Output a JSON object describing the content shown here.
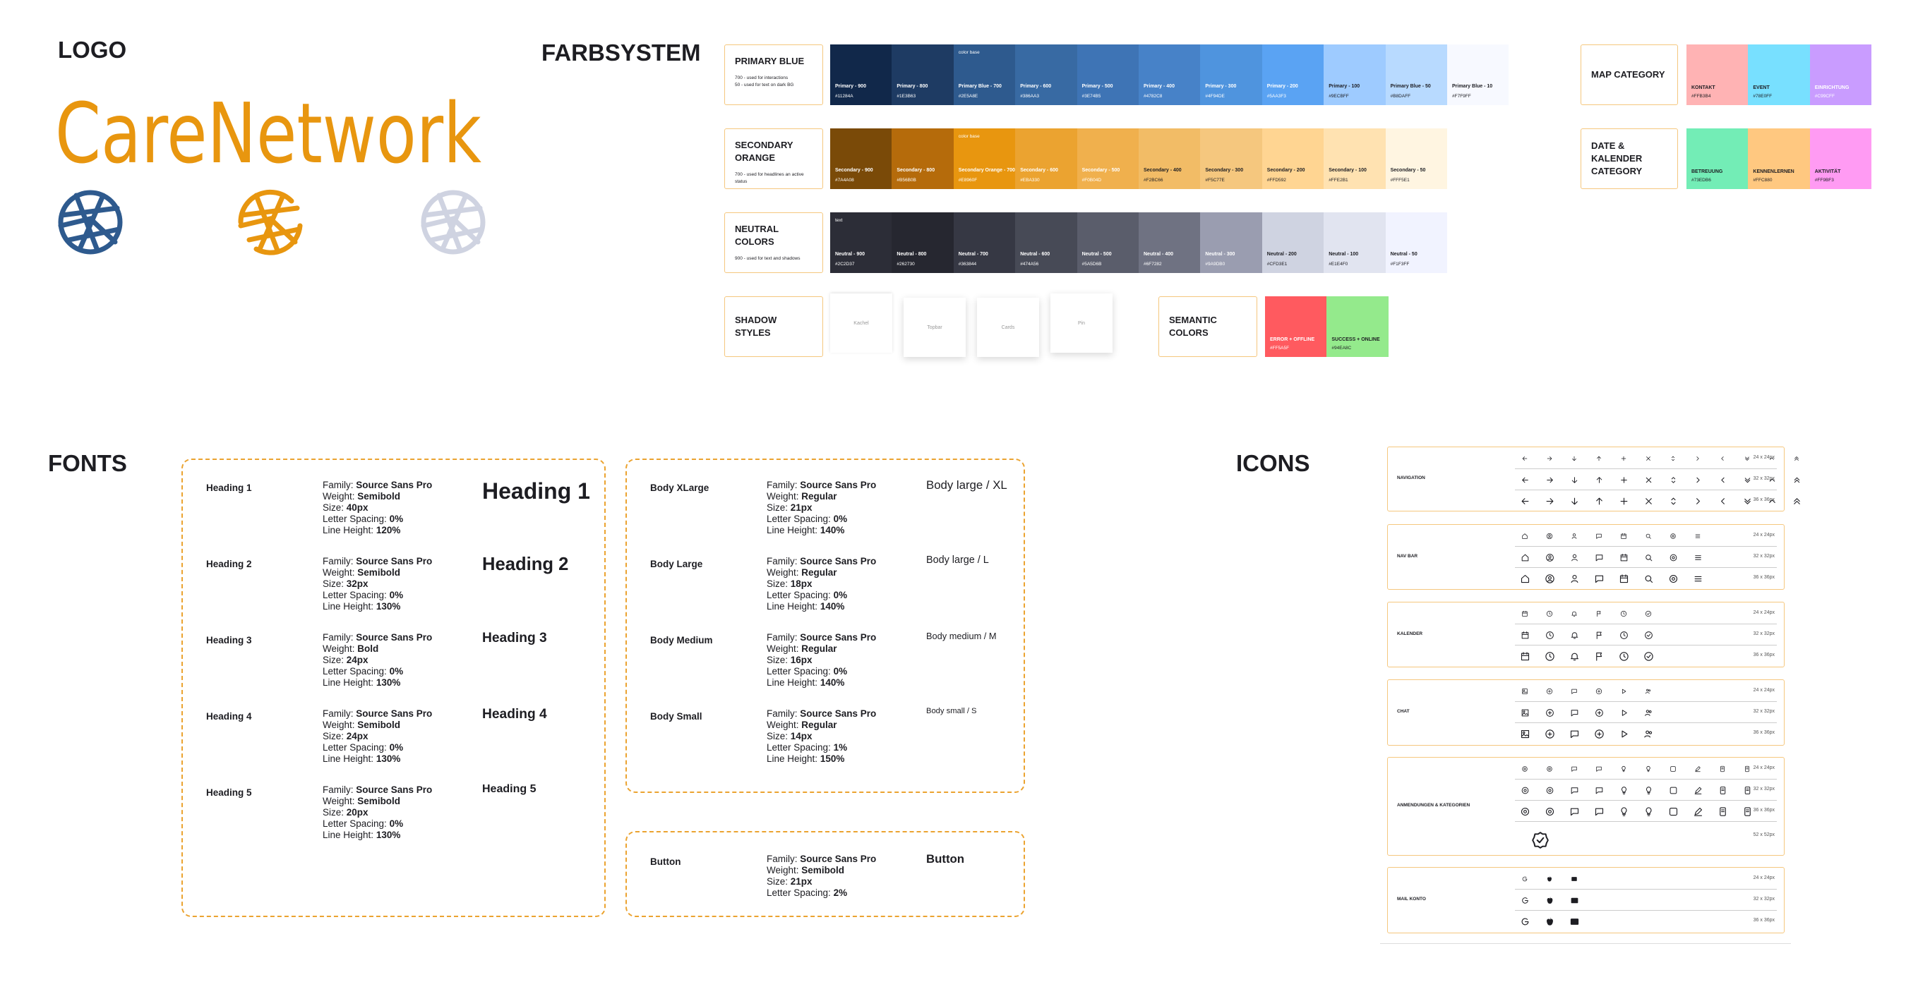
{
  "logo": {
    "title": "LOGO",
    "wordmark": "CareNetwork"
  },
  "colors": {
    "title": "FARBSYSTEM",
    "palettes": [
      {
        "label": "PRIMARY BLUE",
        "notes": [
          "700 - used for interactions",
          "50 - used for text on dark BG"
        ],
        "swatches": [
          {
            "name": "Primary - 900",
            "hex": "#11284A"
          },
          {
            "name": "Primary - 800",
            "hex": "#1E3B63"
          },
          {
            "name": "Primary Blue - 700",
            "hex": "#2E5A8E",
            "tag": "color base"
          },
          {
            "name": "Primary - 600",
            "hex": "#386AA3"
          },
          {
            "name": "Primary - 500",
            "hex": "#3E74B5"
          },
          {
            "name": "Primary - 400",
            "hex": "#4782C8"
          },
          {
            "name": "Primary - 300",
            "hex": "#4F94DE"
          },
          {
            "name": "Primary - 200",
            "hex": "#5AA3F3"
          },
          {
            "name": "Primary - 100",
            "hex": "#9ECBFF"
          },
          {
            "name": "Primary Blue - 50",
            "hex": "#B8DAFF"
          },
          {
            "name": "Primary Blue - 10",
            "hex": "#F7F9FF"
          }
        ]
      },
      {
        "label": "SECONDARY ORANGE",
        "notes": [
          "700 - used for headlines an active status"
        ],
        "swatches": [
          {
            "name": "Secondary - 900",
            "hex": "#7A4A08"
          },
          {
            "name": "Secondary - 800",
            "hex": "#B56B0B"
          },
          {
            "name": "Secondary Orange - 700",
            "hex": "#E8960F",
            "tag": "color base"
          },
          {
            "name": "Secondary - 600",
            "hex": "#EBA330"
          },
          {
            "name": "Secondary - 500",
            "hex": "#F0B04D"
          },
          {
            "name": "Secondary - 400",
            "hex": "#F2BC66"
          },
          {
            "name": "Secondary - 300",
            "hex": "#F5C77E"
          },
          {
            "name": "Secondary - 200",
            "hex": "#FFD592"
          },
          {
            "name": "Secondary - 100",
            "hex": "#FFE2B1"
          },
          {
            "name": "Secondary - 50",
            "hex": "#FFF5E1"
          }
        ]
      },
      {
        "label": "NEUTRAL COLORS",
        "notes": [
          "900 - used for text and shadows"
        ],
        "swatches": [
          {
            "name": "Neutral - 900",
            "hex": "#2C2D37",
            "tag": "text"
          },
          {
            "name": "Neutral - 800",
            "hex": "#262730"
          },
          {
            "name": "Neutral - 700",
            "hex": "#363844"
          },
          {
            "name": "Neutral - 600",
            "hex": "#474A56"
          },
          {
            "name": "Neutral - 500",
            "hex": "#5A5D6B"
          },
          {
            "name": "Neutral - 400",
            "hex": "#6F7282"
          },
          {
            "name": "Neutral - 300",
            "hex": "#9A9DB0"
          },
          {
            "name": "Neutral - 200",
            "hex": "#CFD3E1"
          },
          {
            "name": "Neutral - 100",
            "hex": "#E1E4F0"
          },
          {
            "name": "Neutral - 50",
            "hex": "#F1F3FF"
          }
        ]
      }
    ],
    "shadows": {
      "label": "SHADOW STYLES",
      "items": [
        "Kachel",
        "Topbar",
        "Cards",
        "Pin"
      ]
    },
    "semantic": {
      "label": "SEMANTIC COLORS",
      "swatches": [
        {
          "name": "ERROR + OFFLINE",
          "hex": "#FF5A5F"
        },
        {
          "name": "SUCCESS + ONLINE",
          "hex": "#94EA8C"
        }
      ]
    },
    "categories": [
      {
        "label": "MAP CATEGORY",
        "swatches": [
          {
            "name": "KONTAKT",
            "hex": "#FFB3B4"
          },
          {
            "name": "EVENT",
            "hex": "#78E0FF"
          },
          {
            "name": "EINRICHTUNG",
            "hex": "#C99CFF"
          }
        ]
      },
      {
        "label": "DATE & KALENDER CATEGORY",
        "swatches": [
          {
            "name": "BETREUUNG",
            "hex": "#73EDB6"
          },
          {
            "name": "KENNENLERNEN",
            "hex": "#FFC880"
          },
          {
            "name": "AKTIVITÄT",
            "hex": "#FF9BF3"
          }
        ]
      }
    ]
  },
  "fonts": {
    "title": "FONTS",
    "panels": [
      {
        "rows": [
          {
            "name": "Heading 1",
            "sample": "Heading 1",
            "specs": [
              [
                "Family:",
                "Source Sans Pro"
              ],
              [
                "Weight:",
                "Semibold"
              ],
              [
                "Size:",
                "40px"
              ],
              [
                "Letter Spacing:",
                "0%"
              ],
              [
                "Line Height:",
                "120%"
              ]
            ]
          },
          {
            "name": "Heading 2",
            "sample": "Heading 2",
            "specs": [
              [
                "Family:",
                "Source Sans Pro"
              ],
              [
                "Weight:",
                "Semibold"
              ],
              [
                "Size:",
                "32px"
              ],
              [
                "Letter Spacing:",
                "0%"
              ],
              [
                "Line Height:",
                "130%"
              ]
            ]
          },
          {
            "name": "Heading 3",
            "sample": "Heading 3",
            "specs": [
              [
                "Family:",
                "Source Sans Pro"
              ],
              [
                "Weight:",
                "Bold"
              ],
              [
                "Size:",
                "24px"
              ],
              [
                "Letter Spacing:",
                "0%"
              ],
              [
                "Line Height:",
                "130%"
              ]
            ]
          },
          {
            "name": "Heading 4",
            "sample": "Heading 4",
            "specs": [
              [
                "Family:",
                "Source Sans Pro"
              ],
              [
                "Weight:",
                "Semibold"
              ],
              [
                "Size:",
                "24px"
              ],
              [
                "Letter Spacing:",
                "0%"
              ],
              [
                "Line Height:",
                "130%"
              ]
            ]
          },
          {
            "name": "Heading 5",
            "sample": "Heading 5",
            "specs": [
              [
                "Family:",
                "Source Sans Pro"
              ],
              [
                "Weight:",
                "Semibold"
              ],
              [
                "Size:",
                "20px"
              ],
              [
                "Letter Spacing:",
                "0%"
              ],
              [
                "Line Height:",
                "130%"
              ]
            ]
          }
        ]
      },
      {
        "rows": [
          {
            "name": "Body XLarge",
            "sample": "Body large / XL",
            "specs": [
              [
                "Family:",
                "Source Sans Pro"
              ],
              [
                "Weight:",
                "Regular"
              ],
              [
                "Size:",
                "21px"
              ],
              [
                "Letter Spacing:",
                "0%"
              ],
              [
                "Line Height:",
                "140%"
              ]
            ]
          },
          {
            "name": "Body Large",
            "sample": "Body large / L",
            "specs": [
              [
                "Family:",
                "Source Sans Pro"
              ],
              [
                "Weight:",
                "Regular"
              ],
              [
                "Size:",
                "18px"
              ],
              [
                "Letter Spacing:",
                "0%"
              ],
              [
                "Line Height:",
                "140%"
              ]
            ]
          },
          {
            "name": "Body Medium",
            "sample": "Body medium / M",
            "specs": [
              [
                "Family:",
                "Source Sans Pro"
              ],
              [
                "Weight:",
                "Regular"
              ],
              [
                "Size:",
                "16px"
              ],
              [
                "Letter Spacing:",
                "0%"
              ],
              [
                "Line Height:",
                "140%"
              ]
            ]
          },
          {
            "name": "Body Small",
            "sample": "Body small / S",
            "specs": [
              [
                "Family:",
                "Source Sans Pro"
              ],
              [
                "Weight:",
                "Regular"
              ],
              [
                "Size:",
                "14px"
              ],
              [
                "Letter Spacing:",
                "1%"
              ],
              [
                "Line Height:",
                "150%"
              ]
            ]
          }
        ]
      },
      {
        "rows": [
          {
            "name": "Button",
            "sample": "Button",
            "specs": [
              [
                "Family:",
                "Source Sans Pro"
              ],
              [
                "Weight:",
                "Semibold"
              ],
              [
                "Size:",
                "21px"
              ],
              [
                "Letter Spacing:",
                "2%"
              ]
            ]
          }
        ]
      }
    ]
  },
  "icons": {
    "title": "ICONS",
    "groups": [
      {
        "label": "NAVIGATION",
        "sizes": [
          "24 x 24px",
          "32 x 32px",
          "36 x 36px"
        ]
      },
      {
        "label": "NAV BAR",
        "sizes": [
          "24 x 24px",
          "32 x 32px",
          "36 x 36px"
        ]
      },
      {
        "label": "KALENDER",
        "sizes": [
          "24 x 24px",
          "32 x 32px",
          "36 x 36px"
        ]
      },
      {
        "label": "CHAT",
        "sizes": [
          "24 x 24px",
          "32 x 32px",
          "36 x 36px"
        ]
      },
      {
        "label": "ANMENDUNGEN & KATEGORIEN",
        "sizes": [
          "24 x 24px",
          "32 x 32px",
          "36 x 36px",
          "52 x 52px"
        ]
      },
      {
        "label": "MAIL KONTO",
        "sizes": [
          "24 x 24px",
          "32 x 32px",
          "36 x 36px"
        ]
      }
    ]
  }
}
